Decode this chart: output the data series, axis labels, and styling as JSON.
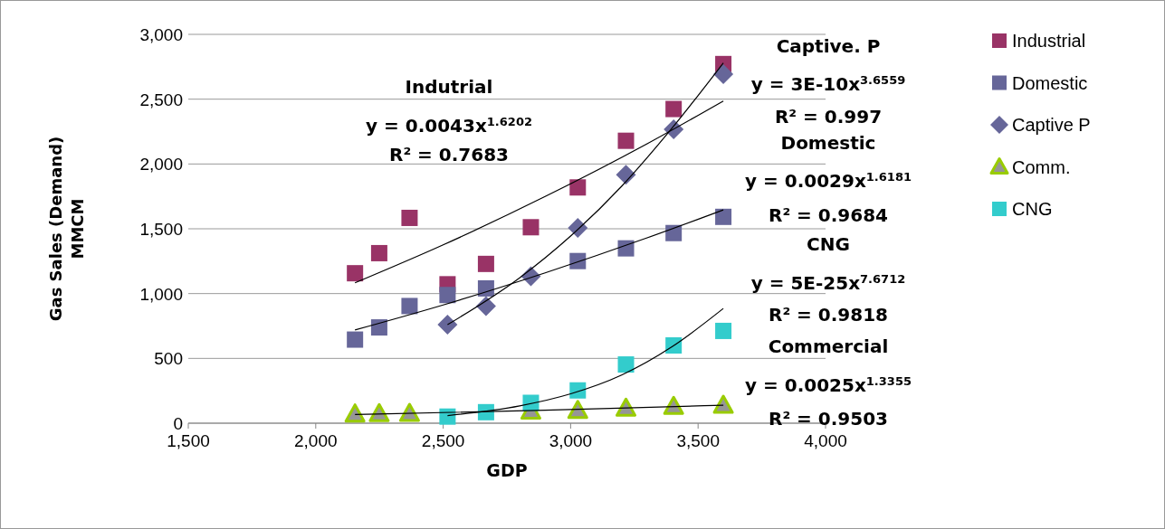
{
  "chart_data": {
    "type": "scatter",
    "xlabel": "GDP",
    "ylabel": "Gas Sales (Demand)\nMMCM",
    "xlim": [
      1500,
      4000
    ],
    "xticks": [
      {
        "value": 1500,
        "label": "1,500"
      },
      {
        "value": 2000,
        "label": "2,000"
      },
      {
        "value": 2500,
        "label": "2,500"
      },
      {
        "value": 3000,
        "label": "3,000"
      },
      {
        "value": 3500,
        "label": "3,500"
      },
      {
        "value": 4000,
        "label": "4,000"
      }
    ],
    "ylim": [
      0,
      3000
    ],
    "yticks": [
      0,
      500,
      {
        "value": 1000,
        "label": "1,000"
      },
      {
        "value": 1500,
        "label": "1,500"
      },
      {
        "value": 2000,
        "label": "2,000"
      },
      {
        "value": 2500,
        "label": "2,500"
      },
      {
        "value": 3000,
        "label": "3,000"
      }
    ],
    "grid": "y",
    "legend": "right",
    "series": [
      {
        "name": "Industrial",
        "color": "#993366",
        "marker": "square",
        "x": [
          2154,
          2249,
          2368,
          2517,
          2668,
          2844,
          3028,
          3217,
          3404,
          3599
        ],
        "values": [
          1157,
          1312,
          1584,
          1072,
          1229,
          1512,
          1819,
          2179,
          2424,
          2771
        ]
      },
      {
        "name": "Domestic",
        "color": "#666699",
        "marker": "square",
        "x": [
          2154,
          2249,
          2368,
          2517,
          2668,
          2844,
          3028,
          3217,
          3404,
          3599
        ],
        "values": [
          645,
          739,
          904,
          989,
          1040,
          null,
          1251,
          1349,
          1467,
          1592
        ]
      },
      {
        "name": "Captive P",
        "color": "#666699",
        "marker": "diamond",
        "x": [
          2517,
          2668,
          2844,
          3028,
          3217,
          3404,
          3599
        ],
        "values": [
          760,
          904,
          1133,
          1507,
          1917,
          2267,
          2693
        ]
      },
      {
        "name": "Comm.",
        "color": "#969696",
        "marker": "triangle",
        "x": [
          2154,
          2249,
          2368,
          2517,
          2668,
          2844,
          3028,
          3217,
          3404,
          3599
        ],
        "values": [
          72,
          75,
          77,
          null,
          null,
          95,
          99,
          117,
          131,
          139
        ]
      },
      {
        "name": "CNG",
        "color": "#33cccc",
        "marker": "square",
        "x": [
          2517,
          2668,
          2844,
          3028,
          3217,
          3404,
          3599
        ],
        "values": [
          51,
          85,
          157,
          253,
          453,
          600,
          712
        ]
      },
      {
        "type": "line",
        "color": "#000000",
        "marker": "none",
        "x": [
          2154,
          2500,
          2900,
          3300,
          3599
        ],
        "values": [
          1083,
          1376,
          1749,
          2156,
          2486
        ]
      },
      {
        "type": "line",
        "color": "#000000",
        "marker": "none",
        "x": [
          2154,
          2500,
          2900,
          3300,
          3599
        ],
        "values": [
          719,
          912,
          1160,
          1430,
          1646
        ]
      },
      {
        "type": "line",
        "color": "#000000",
        "marker": "none",
        "x": [
          2517,
          2800,
          3000,
          3200,
          3400,
          3599
        ],
        "values": [
          760,
          1122,
          1444,
          1828,
          2282,
          2780
        ]
      },
      {
        "type": "line",
        "color": "#000000",
        "marker": "none",
        "x": [
          2154,
          2900,
          3599
        ],
        "values": [
          67,
          100,
          139
        ]
      },
      {
        "type": "line",
        "color": "#000000",
        "marker": "none",
        "x": [
          2517,
          2800,
          3000,
          3200,
          3400,
          3599
        ],
        "values": [
          59,
          134,
          227,
          372,
          593,
          885
        ]
      }
    ],
    "annotations": [
      "Indutrial",
      "y = 0.0043x$^{1.6202}$",
      "R² = 0.7683",
      "Captive. P",
      "y = 3E-10x$^{3.6559}$",
      "R² = 0.997",
      "Domestic",
      "y = 0.0029x$^{1.6181}$",
      "R² = 0.9684",
      "CNG",
      "y = 5E-25x$^{7.6712}$",
      "R² = 0.9818",
      "Commercial",
      "y = 0.0025x$^{1.3355}$",
      "R² = 0.9503"
    ]
  }
}
